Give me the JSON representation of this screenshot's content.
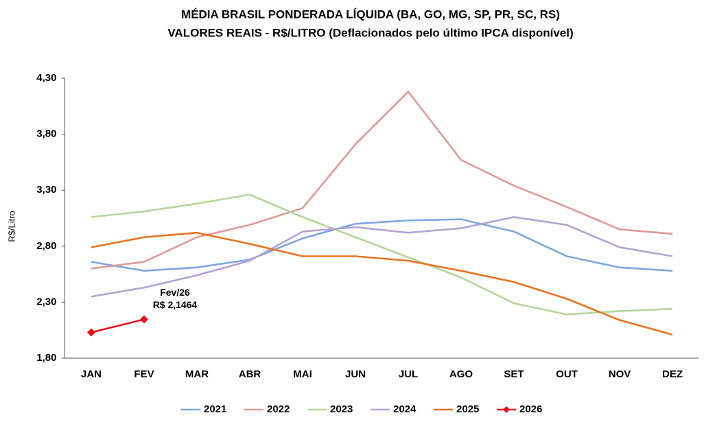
{
  "chart_data": {
    "type": "line",
    "title": "MÉDIA BRASIL PONDERADA LÍQUIDA (BA, GO, MG, SP, PR, SC, RS)",
    "subtitle": "VALORES REAIS - R$/LITRO (Deflacionados pelo último IPCA disponível)",
    "y_label": "R$/Litro",
    "categories": [
      "JAN",
      "FEV",
      "MAR",
      "ABR",
      "MAI",
      "JUN",
      "JUL",
      "AGO",
      "SET",
      "OUT",
      "NOV",
      "DEZ"
    ],
    "ylim": [
      1.8,
      4.3
    ],
    "yticks": [
      {
        "value": 1.8,
        "label": "1,80"
      },
      {
        "value": 2.3,
        "label": "2,30"
      },
      {
        "value": 2.8,
        "label": "2,80"
      },
      {
        "value": 3.3,
        "label": "3,30"
      },
      {
        "value": 3.8,
        "label": "3,80"
      },
      {
        "value": 4.3,
        "label": "4,30"
      }
    ],
    "grid": false,
    "legend": "bottom",
    "series": [
      {
        "name": "2021",
        "color": "#7ea6e0",
        "values": [
          2.66,
          2.58,
          2.61,
          2.68,
          2.87,
          3.0,
          3.03,
          3.04,
          2.93,
          2.71,
          2.61,
          2.58
        ]
      },
      {
        "name": "2022",
        "color": "#e09a96",
        "values": [
          2.6,
          2.66,
          2.88,
          2.99,
          3.14,
          3.71,
          4.18,
          3.57,
          3.34,
          3.15,
          2.95,
          2.91
        ]
      },
      {
        "name": "2023",
        "color": "#b5d69b",
        "values": [
          3.06,
          3.11,
          3.18,
          3.26,
          3.06,
          2.88,
          2.7,
          2.52,
          2.29,
          2.19,
          2.22,
          2.24
        ]
      },
      {
        "name": "2024",
        "color": "#b3a2d4",
        "values": [
          2.35,
          2.43,
          2.54,
          2.67,
          2.93,
          2.97,
          2.92,
          2.96,
          3.06,
          2.99,
          2.79,
          2.71
        ]
      },
      {
        "name": "2025",
        "color": "#e8731f",
        "values": [
          2.79,
          2.88,
          2.92,
          2.82,
          2.71,
          2.71,
          2.67,
          2.58,
          2.48,
          2.33,
          2.14,
          2.01
        ]
      },
      {
        "name": "2026",
        "color": "#e8101c",
        "marker": "diamond",
        "values": [
          2.03,
          2.1464,
          null,
          null,
          null,
          null,
          null,
          null,
          null,
          null,
          null,
          null
        ]
      }
    ],
    "annotation": {
      "series": 5,
      "index": 1,
      "lines": [
        "Fev/26",
        "R$ 2,1464"
      ]
    }
  }
}
